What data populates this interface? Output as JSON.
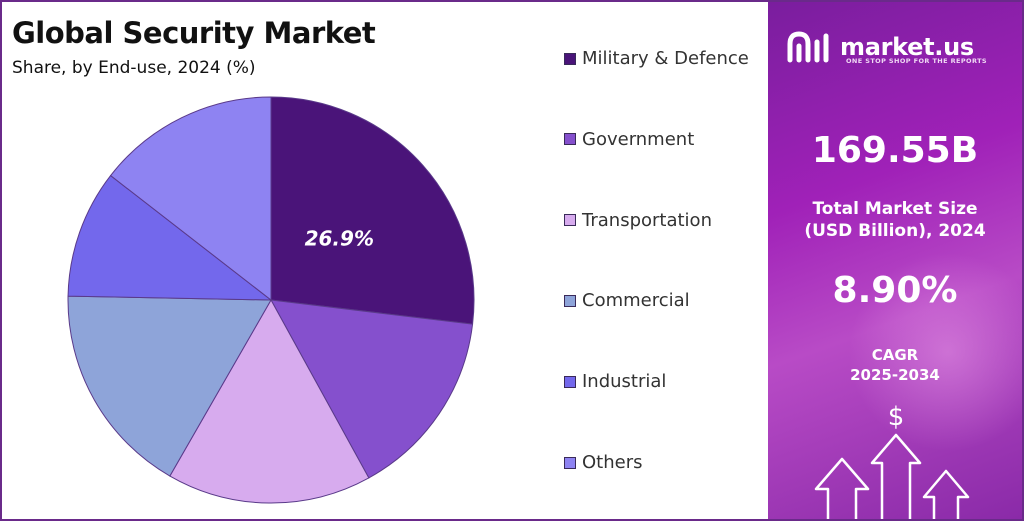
{
  "title": "Global Security Market",
  "subtitle": "Share, by End-use, 2024 (%)",
  "chart_data": {
    "type": "pie",
    "categories": [
      "Military & Defence",
      "Government",
      "Transportation",
      "Commercial",
      "Industrial",
      "Others"
    ],
    "values": [
      26.9,
      15.1,
      16.3,
      17.0,
      10.2,
      14.5
    ],
    "data_labels": [
      "26.9%",
      "",
      "",
      "",
      "",
      ""
    ],
    "colors": [
      "#4a1479",
      "#8550cd",
      "#d7abee",
      "#8ea4d9",
      "#7368ec",
      "#8e83f2"
    ],
    "legend_position": "right"
  },
  "brand": {
    "name": "market.us",
    "tagline": "ONE STOP SHOP FOR THE REPORTS"
  },
  "stats": {
    "market_size": "169.55B",
    "market_size_label_1": "Total Market Size",
    "market_size_label_2": "(USD Billion), 2024",
    "cagr": "8.90%",
    "cagr_label_1": "CAGR",
    "cagr_label_2": "2025-2034",
    "currency_symbol": "$"
  },
  "colors": {
    "panel_purple": "#9c22b6",
    "frame": "#6a2a8a"
  }
}
